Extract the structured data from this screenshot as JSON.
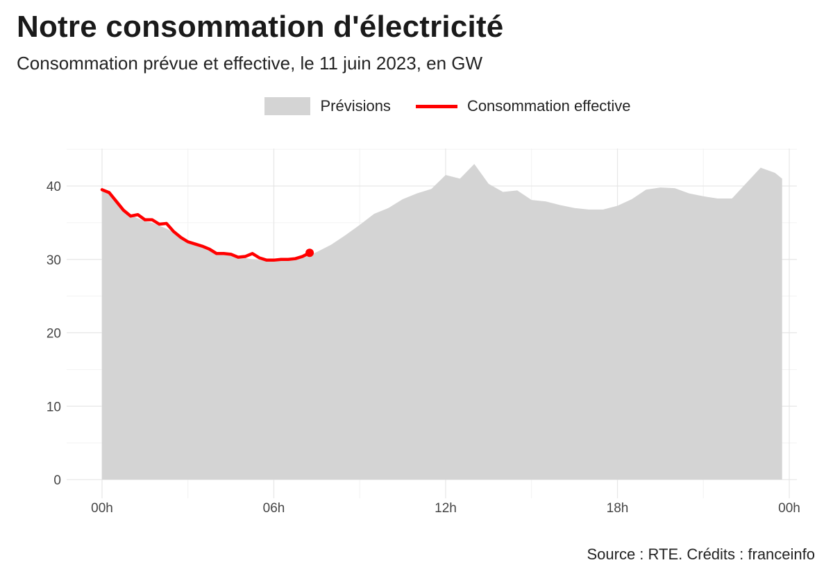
{
  "title": "Notre consommation d'électricité",
  "subtitle": "Consommation prévue et effective, le 11 juin 2023, en GW",
  "source": "Source : RTE. Crédits : franceinfo",
  "chart_data": {
    "type": "area",
    "x_unit": "hours",
    "xlim": [
      0,
      24
    ],
    "ylim": [
      0,
      45
    ],
    "grid": true,
    "legend_position": "top",
    "x_tick_values": [
      0,
      6,
      12,
      18,
      24
    ],
    "x_tick_labels": [
      "00h",
      "06h",
      "12h",
      "18h",
      "00h"
    ],
    "y_tick_values": [
      0,
      10,
      20,
      30,
      40
    ],
    "y_tick_labels": [
      "0",
      "10",
      "20",
      "30",
      "40"
    ],
    "series": [
      {
        "name": "Prévisions",
        "type": "area",
        "color": "#d4d4d4",
        "x": [
          0,
          0.25,
          0.5,
          0.75,
          1.0,
          1.25,
          1.5,
          1.75,
          2.0,
          2.25,
          2.5,
          2.75,
          3.0,
          3.25,
          3.5,
          3.75,
          4.0,
          4.25,
          4.5,
          4.75,
          5.0,
          5.25,
          5.5,
          5.75,
          6.0,
          6.25,
          6.5,
          6.75,
          7.0,
          7.25,
          7.5,
          8.0,
          8.5,
          9.0,
          9.5,
          10.0,
          10.5,
          11.0,
          11.5,
          12.0,
          12.5,
          13.0,
          13.5,
          14.0,
          14.5,
          15.0,
          15.5,
          16.0,
          16.5,
          17.0,
          17.5,
          18.0,
          18.5,
          19.0,
          19.5,
          20.0,
          20.5,
          21.0,
          21.5,
          22.0,
          22.5,
          23.0,
          23.5,
          23.75
        ],
        "values": [
          39.5,
          39.0,
          37.8,
          36.8,
          36.0,
          35.6,
          35.2,
          35.0,
          34.6,
          34.2,
          33.7,
          33.2,
          32.6,
          32.2,
          31.8,
          31.4,
          31.0,
          30.8,
          30.5,
          30.3,
          30.2,
          30.0,
          29.9,
          29.8,
          29.8,
          29.9,
          30.0,
          30.2,
          30.4,
          30.6,
          31.0,
          32.0,
          33.3,
          34.7,
          36.2,
          37.0,
          38.2,
          39.0,
          39.6,
          41.5,
          41.0,
          43.0,
          40.3,
          39.2,
          39.4,
          38.1,
          37.9,
          37.4,
          37.0,
          36.8,
          36.8,
          37.3,
          38.2,
          39.5,
          39.8,
          39.7,
          39.0,
          38.6,
          38.3,
          38.3,
          40.4,
          42.5,
          41.8,
          41.0
        ]
      },
      {
        "name": "Consommation effective",
        "type": "line",
        "color": "#ff0000",
        "x": [
          0,
          0.25,
          0.5,
          0.75,
          1.0,
          1.25,
          1.5,
          1.75,
          2.0,
          2.25,
          2.5,
          2.75,
          3.0,
          3.25,
          3.5,
          3.75,
          4.0,
          4.25,
          4.5,
          4.75,
          5.0,
          5.25,
          5.5,
          5.75,
          6.0,
          6.25,
          6.5,
          6.75,
          7.0,
          7.25
        ],
        "values": [
          39.5,
          39.1,
          37.9,
          36.7,
          35.9,
          36.1,
          35.4,
          35.4,
          34.8,
          34.9,
          33.8,
          33.0,
          32.4,
          32.1,
          31.8,
          31.4,
          30.8,
          30.8,
          30.7,
          30.3,
          30.4,
          30.8,
          30.2,
          29.9,
          29.9,
          30.0,
          30.0,
          30.1,
          30.4,
          30.9
        ]
      }
    ]
  }
}
